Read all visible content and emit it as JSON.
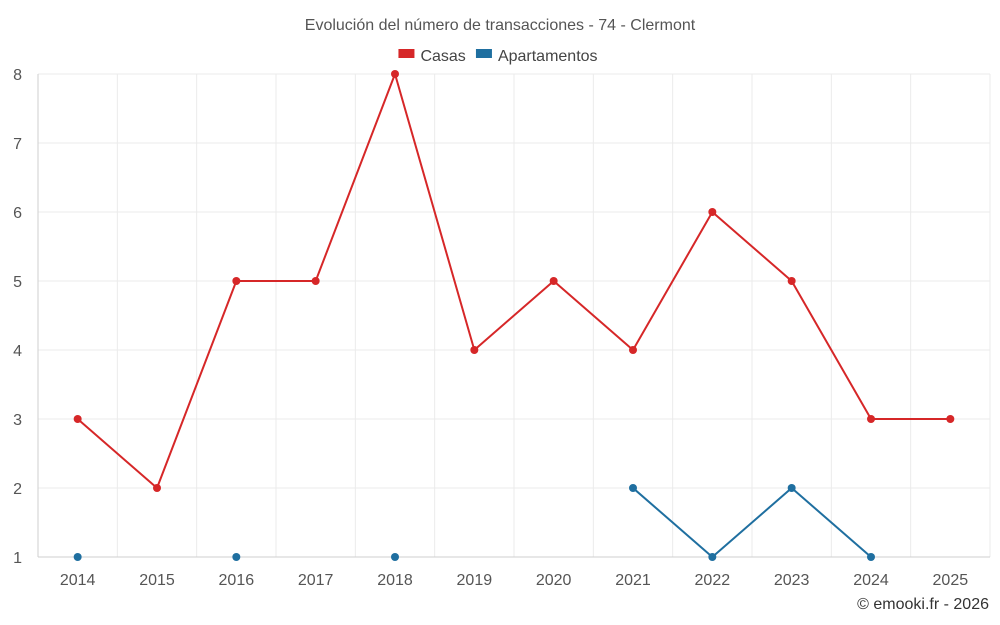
{
  "chart_data": {
    "type": "line",
    "title": "Evolución del número de transacciones - 74 - Clermont",
    "categories": [
      "2014",
      "2015",
      "2016",
      "2017",
      "2018",
      "2019",
      "2020",
      "2021",
      "2022",
      "2023",
      "2024",
      "2025"
    ],
    "series": [
      {
        "name": "Casas",
        "color": "#d62728",
        "values": [
          3,
          2,
          5,
          5,
          8,
          4,
          5,
          4,
          6,
          5,
          3,
          3
        ]
      },
      {
        "name": "Apartamentos",
        "color": "#1f6fa0",
        "values": [
          1,
          null,
          1,
          null,
          1,
          null,
          null,
          2,
          1,
          2,
          1,
          null
        ]
      }
    ],
    "ylim": [
      1,
      8
    ],
    "yticks": [
      1,
      2,
      3,
      4,
      5,
      6,
      7,
      8
    ],
    "grid": true,
    "legend_position": "top-center",
    "xlabel": "",
    "ylabel": ""
  },
  "credit": "© emooki.fr - 2026"
}
